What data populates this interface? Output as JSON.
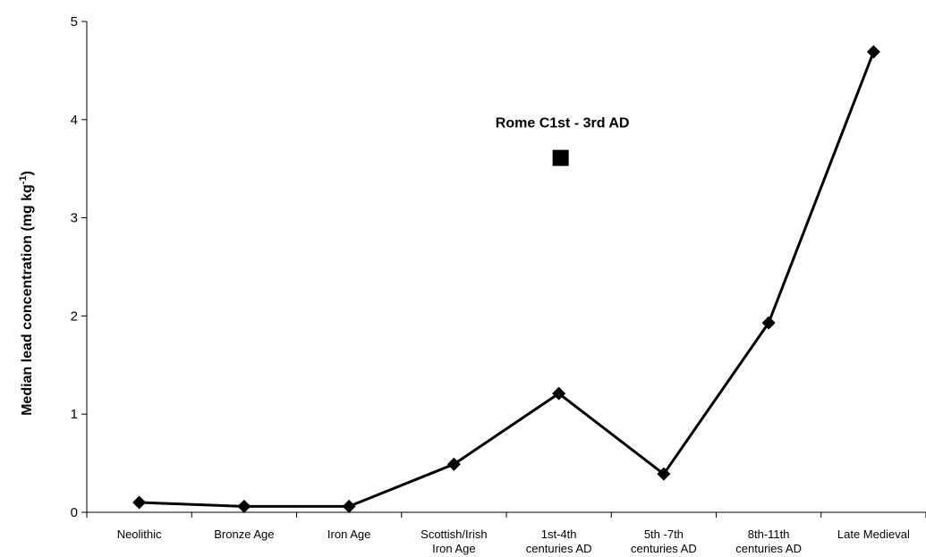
{
  "chart_data": {
    "type": "line",
    "categories": [
      [
        "Neolithic"
      ],
      [
        "Bronze Age"
      ],
      [
        "Iron Age"
      ],
      [
        "Scottish/Irish",
        "Iron Age"
      ],
      [
        "1st-4th",
        "centuries AD"
      ],
      [
        "5th -7th",
        "centuries AD"
      ],
      [
        "8th-11th",
        "centuries AD"
      ],
      [
        "Late Medieval"
      ]
    ],
    "series": [
      {
        "values": [
          0.1,
          0.06,
          0.06,
          0.49,
          1.21,
          0.39,
          1.93,
          4.69
        ],
        "color": "#000000",
        "marker": "diamond"
      }
    ],
    "annotation_point": {
      "label": "Rome C1st - 3rd AD",
      "category_index": 4,
      "value": 3.61,
      "marker": "square",
      "color": "#000000"
    },
    "title": "",
    "xlabel": "",
    "ylabel_main": "Median lead concentration (mg kg",
    "ylabel_sup": "-1",
    "ylabel_close": ")",
    "ylim": [
      0,
      5
    ],
    "yticks": [
      "0",
      "1",
      "2",
      "3",
      "4",
      "5"
    ],
    "grid": false,
    "legend": "none"
  }
}
